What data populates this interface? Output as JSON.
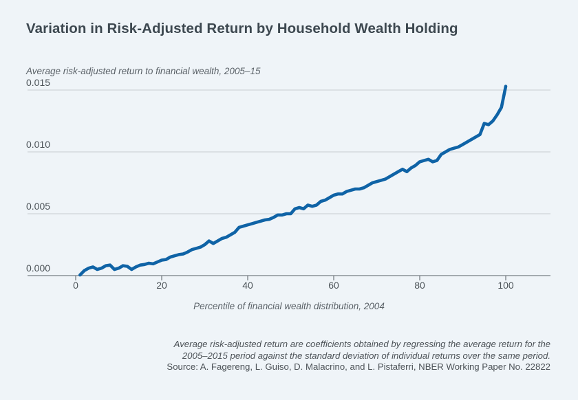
{
  "page": {
    "background_color": "#eff4f8",
    "accent_blue": "#0f63a6"
  },
  "header": {
    "title": "Variation in Risk-Adjusted Return by Household Wealth Holding"
  },
  "chart": {
    "y_axis_title": "Average risk-adjusted return to financial wealth, 2005–15",
    "x_axis_title": "Percentile of financial wealth distribution, 2004",
    "y_ticks": [
      "0.015",
      "0.010",
      "0.005",
      "0.000"
    ],
    "x_ticks": [
      "0",
      "20",
      "40",
      "60",
      "80",
      "100"
    ],
    "line_color": "#0f63a6",
    "gridline_color": "#c7ccd1",
    "axis_color": "#777e83"
  },
  "chart_data": {
    "type": "line",
    "title": "Variation in Risk-Adjusted Return by Household Wealth Holding",
    "xlabel": "Percentile of financial wealth distribution, 2004",
    "ylabel": "Average risk-adjusted return to financial wealth, 2005–15",
    "xlim": [
      0,
      110
    ],
    "ylim": [
      0,
      0.015
    ],
    "grid": "horizontal",
    "legend": "none",
    "x": [
      1,
      2,
      3,
      4,
      5,
      6,
      7,
      8,
      9,
      10,
      11,
      12,
      13,
      14,
      15,
      16,
      17,
      18,
      19,
      20,
      21,
      22,
      23,
      24,
      25,
      26,
      27,
      28,
      29,
      30,
      31,
      32,
      33,
      34,
      35,
      36,
      37,
      38,
      39,
      40,
      41,
      42,
      43,
      44,
      45,
      46,
      47,
      48,
      49,
      50,
      51,
      52,
      53,
      54,
      55,
      56,
      57,
      58,
      59,
      60,
      61,
      62,
      63,
      64,
      65,
      66,
      67,
      68,
      69,
      70,
      71,
      72,
      73,
      74,
      75,
      76,
      77,
      78,
      79,
      80,
      81,
      82,
      83,
      84,
      85,
      86,
      87,
      88,
      89,
      90,
      91,
      92,
      93,
      94,
      95,
      96,
      97,
      98,
      99,
      100
    ],
    "y": [
      5e-05,
      0.0004,
      0.0006,
      0.0007,
      0.0005,
      0.0006,
      0.0008,
      0.00085,
      0.0005,
      0.0006,
      0.0008,
      0.00075,
      0.0005,
      0.0007,
      0.00085,
      0.0009,
      0.001,
      0.00095,
      0.0011,
      0.00125,
      0.0013,
      0.0015,
      0.0016,
      0.0017,
      0.00175,
      0.0019,
      0.0021,
      0.0022,
      0.0023,
      0.0025,
      0.0028,
      0.0026,
      0.0028,
      0.003,
      0.0031,
      0.0033,
      0.0035,
      0.0039,
      0.004,
      0.0041,
      0.0042,
      0.0043,
      0.0044,
      0.0045,
      0.00455,
      0.0047,
      0.0049,
      0.0049,
      0.005,
      0.005,
      0.0054,
      0.0055,
      0.0054,
      0.0057,
      0.0056,
      0.0057,
      0.006,
      0.0061,
      0.0063,
      0.0065,
      0.0066,
      0.0066,
      0.0068,
      0.0069,
      0.007,
      0.007,
      0.0071,
      0.0073,
      0.0075,
      0.0076,
      0.0077,
      0.0078,
      0.008,
      0.0082,
      0.0084,
      0.0086,
      0.0084,
      0.0087,
      0.0089,
      0.0092,
      0.0093,
      0.0094,
      0.0092,
      0.0093,
      0.0098,
      0.01,
      0.0102,
      0.0103,
      0.0104,
      0.0106,
      0.0108,
      0.011,
      0.0112,
      0.0114,
      0.0123,
      0.0122,
      0.0125,
      0.013,
      0.0136,
      0.0153
    ]
  },
  "footer": {
    "note_line1": "Average risk-adjusted return are coefficients obtained by regressing the average return for the",
    "note_line2": "2005–2015 period against the standard deviation of individual returns over the same period.",
    "source_line": "Source: A. Fagereng, L. Guiso, D. Malacrino, and L. Pistaferri, NBER Working Paper No. 22822"
  }
}
